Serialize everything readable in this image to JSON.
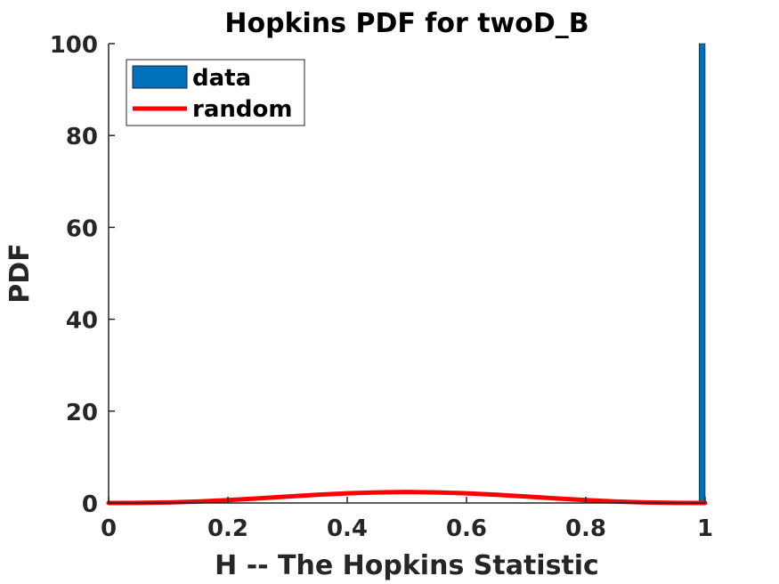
{
  "chart_data": {
    "type": "bar",
    "title": "Hopkins PDF for twoD_B",
    "xlabel": "H -- The Hopkins Statistic",
    "ylabel": "PDF",
    "xlim": [
      0,
      1
    ],
    "ylim": [
      0,
      100
    ],
    "xticks": [
      "0",
      "0.2",
      "0.4",
      "0.6",
      "0.8",
      "1"
    ],
    "yticks": [
      "0",
      "20",
      "40",
      "60",
      "80",
      "100"
    ],
    "grid": false,
    "legend_position": "top-left",
    "series": [
      {
        "name": "data",
        "kind": "histogram",
        "color": "#0072BD",
        "bins": [
          {
            "x0": 0.99,
            "x1": 1.0,
            "value": 100
          }
        ]
      },
      {
        "name": "random",
        "kind": "line",
        "color": "#FF0000",
        "x": [
          0,
          0.05,
          0.1,
          0.15,
          0.2,
          0.25,
          0.3,
          0.35,
          0.4,
          0.45,
          0.5,
          0.55,
          0.6,
          0.65,
          0.7,
          0.75,
          0.8,
          0.85,
          0.9,
          0.95,
          1
        ],
        "y": [
          0,
          0.02,
          0.12,
          0.32,
          0.62,
          1.0,
          1.4,
          1.8,
          2.1,
          2.3,
          2.4,
          2.3,
          2.1,
          1.8,
          1.4,
          1.0,
          0.62,
          0.32,
          0.12,
          0.02,
          0
        ]
      }
    ]
  },
  "legend": {
    "items": [
      {
        "label": "data",
        "color": "#0072BD"
      },
      {
        "label": "random",
        "color": "#FF0000"
      }
    ]
  }
}
